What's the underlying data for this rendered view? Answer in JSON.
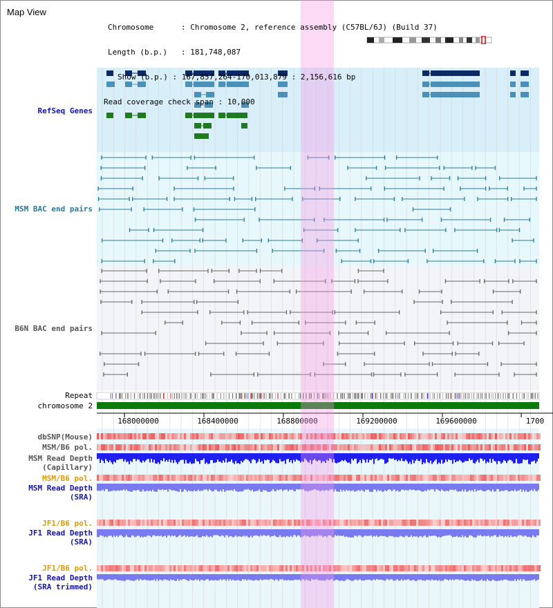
{
  "app": {
    "title": "Map View"
  },
  "info": {
    "chromosome_key": "Chromosome",
    "chromosome_value": "Chromosome 2, reference assembly (C57BL/6J) (Build 37)",
    "length_key": "Length (b.p.)",
    "length_value": "181,748,087",
    "show_key": "Show (b.p.)",
    "show_value": "167,857,264-170,013,879 : 2,156,616 bp",
    "coverage_key": "Read coverage check span",
    "coverage_value": "10,000"
  },
  "tracks": {
    "refseq": "RefSeq Genes",
    "msm_bac": "MSM BAC end pairs",
    "b6n_bac": "B6N BAC end pairs",
    "repeat": "Repeat",
    "chromosome": "chromosome 2",
    "dbsnp": "dbSNP(Mouse)",
    "msm_b6_pol_1": "MSM/B6 pol.",
    "msm_read_depth_cap_1": "MSM Read Depth",
    "msm_read_depth_cap_2": "(Capillary)",
    "msm_b6_pol_2": "MSM/B6 pol.",
    "msm_read_depth_sra_1": "MSM Read Depth",
    "msm_read_depth_sra_2": "(SRA)",
    "jf1_b6_pol_1": "JF1/B6 pol.",
    "jf1_read_depth_sra_1": "JF1 Read Depth",
    "jf1_read_depth_sra_2": "(SRA)",
    "jf1_b6_pol_2": "JF1/B6 pol.",
    "jf1_read_depth_trim_1": "JF1 Read Depth",
    "jf1_read_depth_trim_2": "(SRA trimmed)"
  },
  "axis": {
    "ticks": [
      "168000000",
      "168400000",
      "168800000",
      "169200000",
      "169600000",
      "1700"
    ]
  },
  "colors": {
    "refseq_bg": "#d8eef9",
    "msm_bg": "#e6f8fb",
    "b6n_bg": "#f3f4f8",
    "lower_bg": "#e9f7fa",
    "highlight": "#f5c8f0",
    "gene_dark": "#0b2a63",
    "gene_mid": "#4a90b8",
    "gene_green": "#1f7a1f",
    "msm_line": "#2a7a9a",
    "b6n_line": "#666666",
    "chrom": "#0a7a0a",
    "snp_red": "#f0605a",
    "depth_blue": "#1f1ff0",
    "depth_light": "#7a7af0",
    "label_blue": "#1515a8",
    "label_orange": "#e09a00"
  }
}
